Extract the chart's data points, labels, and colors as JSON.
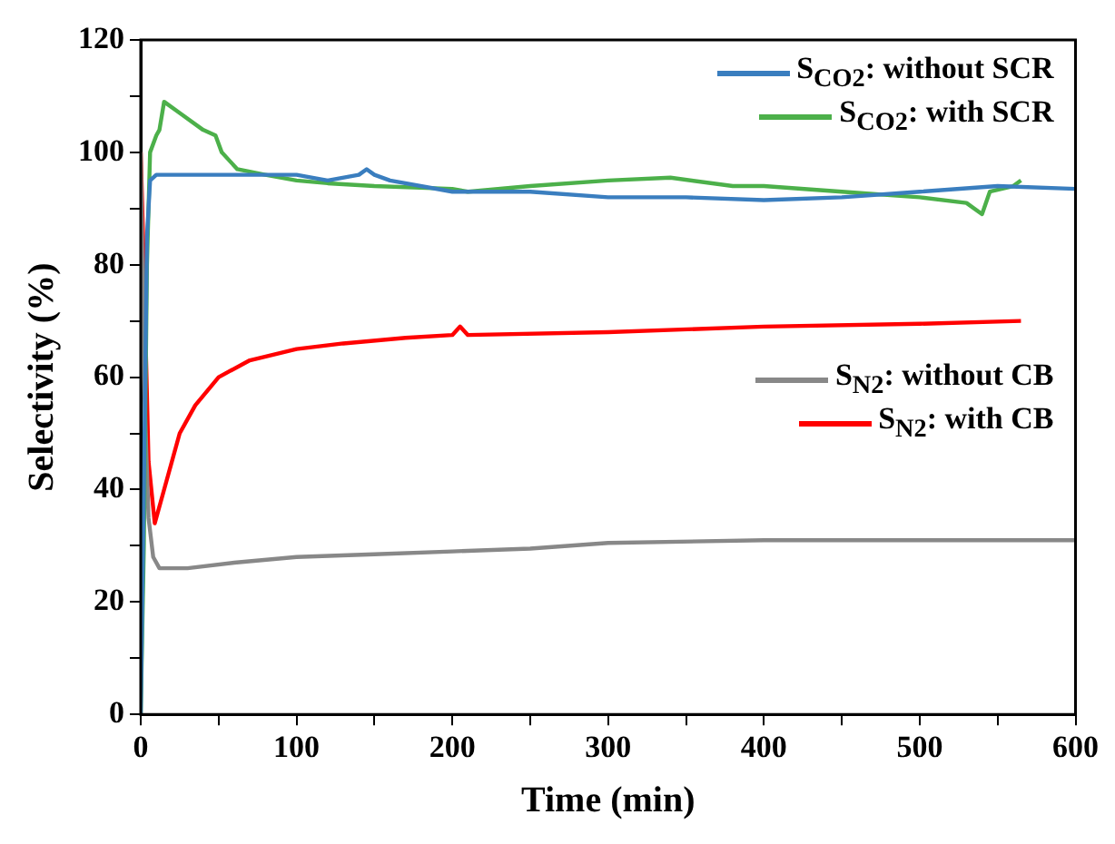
{
  "chart_data": {
    "type": "line",
    "xlabel": "Time (min)",
    "ylabel": "Selectivity (%)",
    "xlim": [
      0,
      600
    ],
    "xticks": [
      0,
      {
        "value": 50,
        "label": null
      },
      100,
      {
        "value": 150,
        "label": null
      },
      200,
      {
        "value": 250,
        "label": null
      },
      300,
      {
        "value": 350,
        "label": null
      },
      400,
      {
        "value": 450,
        "label": null
      },
      500,
      {
        "value": 550,
        "label": null
      },
      600
    ],
    "ylim": [
      0,
      120
    ],
    "yticks": [
      0,
      {
        "value": 10,
        "label": null
      },
      20,
      {
        "value": 30,
        "label": null
      },
      40,
      {
        "value": 50,
        "label": null
      },
      60,
      {
        "value": 70,
        "label": null
      },
      80,
      {
        "value": 90,
        "label": null
      },
      100,
      {
        "value": 110,
        "label": null
      },
      120
    ],
    "grid": false,
    "legend": "top right",
    "marker": "none",
    "line_style": "solid",
    "series": [
      {
        "name": "S$_{CO2}$: without SCR",
        "color": "#3a7ebf",
        "x": [
          0,
          2,
          4,
          6,
          10,
          30,
          60,
          100,
          120,
          140,
          145,
          150,
          160,
          200,
          250,
          300,
          350,
          400,
          450,
          500,
          550,
          600
        ],
        "values": [
          0,
          40,
          85,
          95,
          96,
          96,
          96,
          96,
          95,
          96,
          97,
          96,
          95,
          93,
          93,
          92,
          92,
          91.5,
          92,
          93,
          94,
          93.5
        ]
      },
      {
        "name": "S$_{CO2}$: with SCR",
        "color": "#4cb04a",
        "x": [
          0,
          2,
          4,
          6,
          10,
          12,
          15,
          25,
          40,
          48,
          52,
          62,
          80,
          100,
          120,
          150,
          200,
          210,
          250,
          300,
          340,
          380,
          400,
          450,
          500,
          530,
          540,
          545,
          560,
          565
        ],
        "values": [
          0,
          30,
          80,
          100,
          103,
          104,
          109,
          107,
          104,
          103,
          100,
          97,
          96,
          95,
          94.5,
          94,
          93.5,
          93,
          94,
          95,
          95.5,
          94,
          94,
          93,
          92,
          91,
          89,
          93,
          94,
          95
        ]
      },
      {
        "name": "S$_{N2}$: without CB",
        "color": "#888888",
        "x": [
          0,
          2,
          5,
          8,
          12,
          30,
          60,
          100,
          150,
          200,
          250,
          300,
          400,
          500,
          600
        ],
        "values": [
          100,
          60,
          35,
          28,
          26,
          26,
          27,
          28,
          28.5,
          29,
          29.5,
          30.5,
          31,
          31,
          31
        ]
      },
      {
        "name": "S$_{N2}$: with CB",
        "color": "#ff0000",
        "x": [
          0,
          2,
          5,
          9,
          15,
          25,
          35,
          50,
          70,
          100,
          130,
          170,
          200,
          205,
          210,
          300,
          400,
          500,
          565
        ],
        "values": [
          100,
          80,
          45,
          34,
          40,
          50,
          55,
          60,
          63,
          65,
          66,
          67,
          67.5,
          69,
          67.5,
          68,
          69,
          69.5,
          70
        ]
      }
    ]
  }
}
